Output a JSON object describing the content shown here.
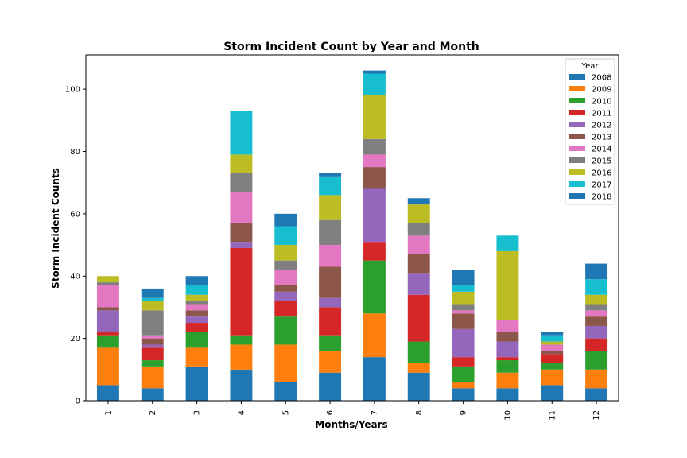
{
  "chart_data": {
    "type": "bar",
    "stacked": true,
    "title": "Storm Incident Count by Year and Month",
    "xlabel": "Months/Years",
    "ylabel": "Storm Incident Counts",
    "ylim": [
      0,
      111
    ],
    "yticks": [
      0,
      20,
      40,
      60,
      80,
      100
    ],
    "grid": false,
    "legend": {
      "title": "Year",
      "placement": "top-right"
    },
    "categories": [
      "1",
      "2",
      "3",
      "4",
      "5",
      "6",
      "7",
      "8",
      "9",
      "10",
      "11",
      "12"
    ],
    "series": [
      {
        "name": "2008",
        "color": "#1f77b4",
        "values": [
          5,
          4,
          11,
          10,
          6,
          9,
          14,
          9,
          4,
          4,
          5,
          4
        ]
      },
      {
        "name": "2009",
        "color": "#ff7f0e",
        "values": [
          12,
          7,
          6,
          8,
          12,
          7,
          14,
          3,
          2,
          5,
          5,
          6
        ]
      },
      {
        "name": "2010",
        "color": "#2ca02c",
        "values": [
          4,
          2,
          5,
          3,
          9,
          5,
          17,
          7,
          5,
          4,
          2,
          6
        ]
      },
      {
        "name": "2011",
        "color": "#d62728",
        "values": [
          1,
          4,
          3,
          28,
          5,
          9,
          6,
          15,
          3,
          1,
          3,
          4
        ]
      },
      {
        "name": "2012",
        "color": "#9467bd",
        "values": [
          7,
          1,
          2,
          2,
          3,
          3,
          17,
          7,
          9,
          5,
          0,
          4
        ]
      },
      {
        "name": "2013",
        "color": "#8c564b",
        "values": [
          1,
          2,
          2,
          6,
          2,
          10,
          7,
          6,
          5,
          3,
          1,
          3
        ]
      },
      {
        "name": "2014",
        "color": "#e377c2",
        "values": [
          7,
          1,
          2,
          10,
          5,
          7,
          4,
          6,
          1,
          4,
          2,
          2
        ]
      },
      {
        "name": "2015",
        "color": "#7f7f7f",
        "values": [
          1,
          8,
          1,
          6,
          3,
          8,
          5,
          4,
          2,
          0,
          0,
          2
        ]
      },
      {
        "name": "2016",
        "color": "#bcbd22",
        "values": [
          2,
          3,
          2,
          6,
          5,
          8,
          14,
          6,
          4,
          22,
          1,
          3
        ]
      },
      {
        "name": "2017",
        "color": "#17becf",
        "values": [
          0,
          1,
          3,
          14,
          6,
          6,
          7,
          0,
          2,
          5,
          2,
          5
        ]
      },
      {
        "name": "2018",
        "color": "#1f77b4",
        "values": [
          0,
          3,
          3,
          0,
          4,
          1,
          1,
          2,
          5,
          0,
          1,
          5
        ]
      }
    ]
  }
}
